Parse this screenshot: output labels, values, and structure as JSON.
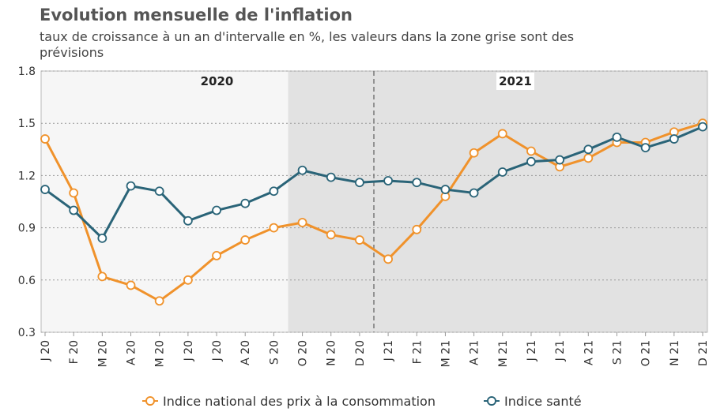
{
  "chart_data": {
    "type": "line",
    "title": "Evolution mensuelle de l'inflation",
    "subtitle": "taux de croissance à un an d'intervalle en %, les valeurs dans la zone grise sont des prévisions",
    "annotations": [
      "2020",
      "2021"
    ],
    "categories": [
      "J 20",
      "F 20",
      "M 20",
      "A 20",
      "M 20",
      "J 20",
      "J 20",
      "A 20",
      "S 20",
      "O 20",
      "N 20",
      "D 20",
      "J 21",
      "F 21",
      "M 21",
      "A 21",
      "M 21",
      "J 21",
      "J 21",
      "A 21",
      "S 21",
      "O 21",
      "N 21",
      "D 21"
    ],
    "series": [
      {
        "name": "Indice national des prix à la consommation",
        "color": "#f0922b",
        "values": [
          1.41,
          1.1,
          0.62,
          0.57,
          0.48,
          0.6,
          0.74,
          0.83,
          0.9,
          0.93,
          0.86,
          0.83,
          0.72,
          0.89,
          1.08,
          1.33,
          1.44,
          1.34,
          1.25,
          1.3,
          1.39,
          1.39,
          1.45,
          1.5
        ]
      },
      {
        "name": "Indice santé",
        "color": "#2a6478",
        "values": [
          1.12,
          1.0,
          0.84,
          1.14,
          1.11,
          0.94,
          1.0,
          1.04,
          1.11,
          1.23,
          1.19,
          1.16,
          1.17,
          1.16,
          1.12,
          1.1,
          1.22,
          1.28,
          1.29,
          1.35,
          1.42,
          1.36,
          1.41,
          1.48
        ]
      }
    ],
    "ylim": [
      0.3,
      1.8
    ],
    "yticks": [
      0.3,
      0.6,
      0.9,
      1.2,
      1.5,
      1.8
    ],
    "grid": true
  }
}
